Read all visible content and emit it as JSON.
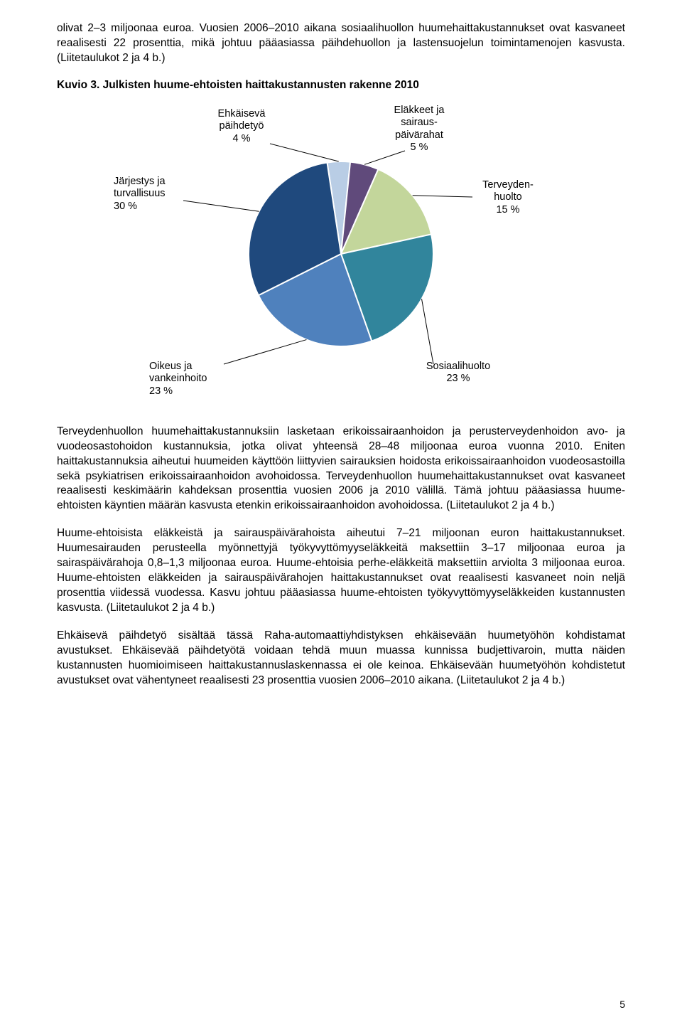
{
  "para1": "olivat 2–3 miljoonaa euroa. Vuosien 2006–2010 aikana sosiaalihuollon huumehaittakustannukset ovat kasvaneet reaalisesti 22 prosenttia, mikä johtuu pääasiassa päihdehuollon ja lastensuojelun toimintamenojen kasvusta. (Liitetaulukot 2 ja 4 b.)",
  "heading": "Kuvio 3. Julkisten huume-ehtoisten haittakustannusten rakenne 2010",
  "chart": {
    "type": "pie",
    "background_color": "#ffffff",
    "outline_color": "#ffffff",
    "label_fontsize": 14.5,
    "labels": {
      "l1": {
        "line1": "Ehkäisevä",
        "line2": "päihdetyö",
        "line3": "4 %"
      },
      "l2": {
        "line1": "Eläkkeet ja",
        "line2": "sairaus-",
        "line3": "päivärahat",
        "line4": "5 %"
      },
      "l3": {
        "line1": "Järjestys ja",
        "line2": "turvallisuus",
        "line3": "30 %"
      },
      "l4": {
        "line1": "Terveyden-",
        "line2": "huolto",
        "line3": "15 %"
      },
      "l5": {
        "line1": "Oikeus ja",
        "line2": "vankeinhoito",
        "line3": "23 %"
      },
      "l6": {
        "line1": "Sosiaalihuolto",
        "line2": "23 %"
      }
    },
    "slices": [
      {
        "value": 4,
        "color": "#b9cde5"
      },
      {
        "value": 5,
        "color": "#604a7b"
      },
      {
        "value": 15,
        "color": "#c3d69b"
      },
      {
        "value": 23,
        "color": "#31859c"
      },
      {
        "value": 23,
        "color": "#4f81bd"
      },
      {
        "value": 30,
        "color": "#1f497d"
      }
    ]
  },
  "para2": "Terveydenhuollon huumehaittakustannuksiin lasketaan erikoissairaanhoidon ja perusterveydenhoidon avo- ja vuodeosastohoidon kustannuksia, jotka olivat yhteensä 28–48 miljoonaa euroa vuonna 2010. Eniten haittakustannuksia aiheutui huumeiden käyttöön liittyvien sairauksien hoidosta erikoissairaanhoidon vuodeosastoilla sekä psykiatrisen erikoissairaanhoidon avohoidossa. Terveydenhuollon huumehaittakustannukset ovat kasvaneet reaalisesti keskimäärin kahdeksan prosenttia vuosien 2006 ja 2010 välillä. Tämä johtuu pääasiassa huume-ehtoisten käyntien määrän kasvusta etenkin erikoissairaanhoidon avohoidossa. (Liitetaulukot 2 ja 4 b.)",
  "para3": "Huume-ehtoisista eläkkeistä ja sairauspäivärahoista aiheutui 7–21 miljoonan euron haittakustannukset. Huumesairauden perusteella myönnettyjä työkyvyttömyyseläkkeitä maksettiin 3–17 miljoonaa euroa ja sairaspäivärahoja 0,8–1,3 miljoonaa euroa. Huume-ehtoisia perhe-eläkkeitä maksettiin arviolta 3 miljoonaa euroa. Huume-ehtoisten eläkkeiden ja sairauspäivärahojen haittakustannukset ovat reaalisesti kasvaneet noin neljä prosenttia viidessä vuodessa. Kasvu johtuu pääasiassa huume-ehtoisten työkyvyttömyyseläkkeiden kustannusten kasvusta. (Liitetaulukot 2 ja 4 b.)",
  "para4": "Ehkäisevä päihdetyö sisältää tässä Raha-automaattiyhdistyksen ehkäisevään huumetyöhön kohdistamat avustukset. Ehkäisevää päihdetyötä voidaan tehdä muun muassa kunnissa budjettivaroin, mutta näiden kustannusten huomioimiseen haittakustannuslaskennassa ei ole keinoa. Ehkäisevään huumetyöhön kohdistetut avustukset ovat vähentyneet reaalisesti 23 prosenttia vuosien 2006–2010 aikana. (Liitetaulukot 2 ja 4 b.)",
  "page_number": "5"
}
